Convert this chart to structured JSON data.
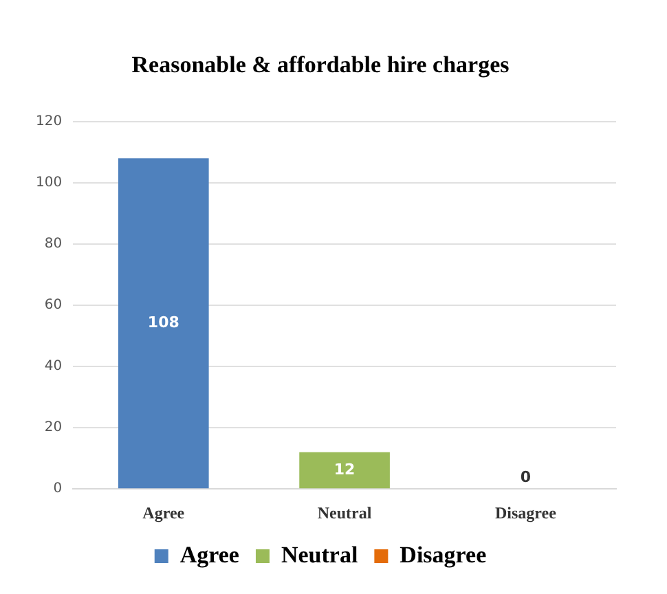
{
  "chart_data": {
    "type": "bar",
    "title": "Reasonable & affordable hire charges",
    "categories": [
      "Agree",
      "Neutral",
      "Disagree"
    ],
    "series": [
      {
        "name": "Agree",
        "color": "#4f81bd",
        "values": [
          108,
          null,
          null
        ]
      },
      {
        "name": "Neutral",
        "color": "#9bbb59",
        "values": [
          null,
          12,
          null
        ]
      },
      {
        "name": "Disagree",
        "color": "#e46c0a",
        "values": [
          null,
          null,
          0
        ]
      }
    ],
    "ylim": [
      0,
      120
    ],
    "yticks": [
      0,
      20,
      40,
      60,
      80,
      100,
      120
    ],
    "grid": "y",
    "data_labels": true,
    "legend": "bottom"
  }
}
